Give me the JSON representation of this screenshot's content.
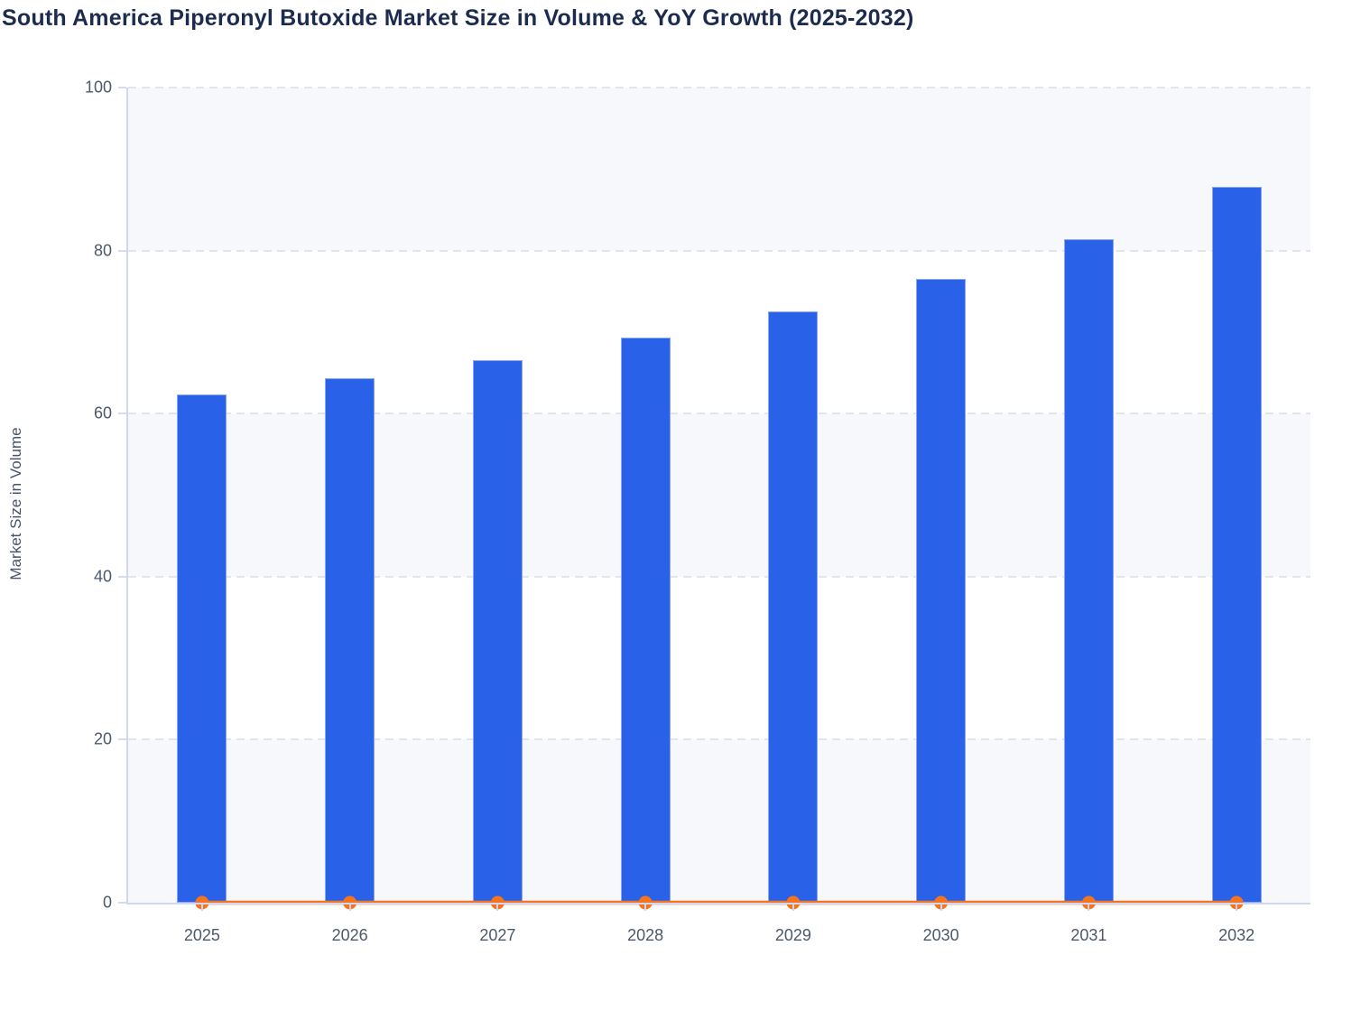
{
  "header": {
    "title": "South America Piperonyl Butoxide Market Size in Volume & YoY Growth (2025-2032)"
  },
  "chart_data": {
    "type": "bar",
    "title": "South America Piperonyl Butoxide Market Size in Volume & YoY Growth (2025-2032)",
    "categories": [
      "2025",
      "2026",
      "2027",
      "2028",
      "2029",
      "2030",
      "2031",
      "2032"
    ],
    "series": [
      {
        "name": "Market Size in Volume",
        "type": "bar",
        "color": "#2962e9",
        "values": [
          62.3,
          64.3,
          66.6,
          69.3,
          72.5,
          76.5,
          81.4,
          87.8
        ]
      },
      {
        "name": "YoY Growth",
        "type": "line",
        "color": "#f6741c",
        "values": [
          0,
          0,
          0,
          0,
          0,
          0,
          0,
          0
        ]
      }
    ],
    "xlabel": "",
    "ylabel": "Market Size in Volume",
    "ylim": [
      0,
      100
    ],
    "yticks": [
      0,
      20,
      40,
      60,
      80,
      100
    ],
    "grid": "dashed horizontal gridlines",
    "plot_bands": "alternating shaded bands 0-20, 40-60, 80-100",
    "legend_position": "none",
    "colors": {
      "bar": "#2962e9",
      "bar_border": "#8aa6f2",
      "line": "#f6741c",
      "band": "#f7f8fc",
      "gridline": "#e2e5ea",
      "axis": "#cfd7f3",
      "tick_label": "#4d596b",
      "title": "#1d2c4e"
    }
  }
}
